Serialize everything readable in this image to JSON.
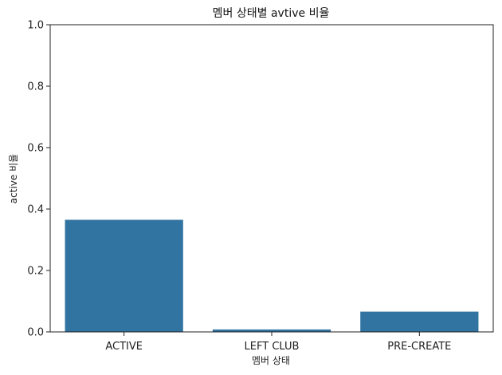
{
  "chart_data": {
    "type": "bar",
    "title": "멤버 상태별 avtive 비율",
    "xlabel": "멤버 상태",
    "ylabel": "active 비율",
    "categories": [
      "ACTIVE",
      "LEFT CLUB",
      "PRE-CREATE"
    ],
    "values": [
      0.365,
      0.008,
      0.066
    ],
    "ylim": [
      0,
      1.0
    ],
    "yticks": [
      "0.0",
      "0.2",
      "0.4",
      "0.6",
      "0.8",
      "1.0"
    ],
    "grid": false,
    "bar_color": "#3274a1"
  }
}
